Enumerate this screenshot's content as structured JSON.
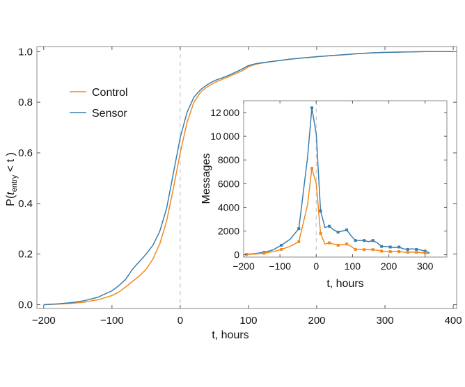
{
  "colors": {
    "control": "#f28a1f",
    "sensor": "#3a7fb0",
    "guide": "#c8c8c8",
    "frame": "#888888"
  },
  "chart_data": [
    {
      "type": "line",
      "xlabel": "t, hours",
      "ylabel_prefix": "P(",
      "ylabel_var": "t",
      "ylabel_sub": "entry",
      "ylabel_suffix": " < t )",
      "xlim": [
        -210,
        405
      ],
      "ylim": [
        -0.015,
        1.02
      ],
      "xticks": [
        -200,
        -100,
        0,
        100,
        200,
        300,
        400
      ],
      "xtick_labels": [
        "−200",
        "−100",
        "0",
        "100",
        "200",
        "300",
        "400"
      ],
      "yticks": [
        0.0,
        0.2,
        0.4,
        0.6,
        0.8,
        1.0
      ],
      "ytick_labels": [
        "0.0",
        "0.2",
        "0.4",
        "0.6",
        "0.8",
        "1.0"
      ],
      "vline_x": 0,
      "legend": "upper-left",
      "series": [
        {
          "name": "Control",
          "color_key": "control",
          "x": [
            -200,
            -180,
            -160,
            -140,
            -120,
            -100,
            -90,
            -80,
            -70,
            -60,
            -50,
            -40,
            -30,
            -20,
            -10,
            0,
            10,
            20,
            30,
            40,
            50,
            70,
            90,
            100,
            110,
            120,
            140,
            160,
            180,
            200,
            220,
            240,
            260,
            280,
            300,
            320,
            340,
            360,
            380,
            400
          ],
          "y": [
            0.0,
            0.002,
            0.005,
            0.01,
            0.02,
            0.036,
            0.05,
            0.07,
            0.092,
            0.113,
            0.14,
            0.18,
            0.24,
            0.33,
            0.46,
            0.6,
            0.72,
            0.8,
            0.84,
            0.862,
            0.877,
            0.9,
            0.923,
            0.94,
            0.95,
            0.955,
            0.963,
            0.97,
            0.975,
            0.98,
            0.984,
            0.988,
            0.992,
            0.995,
            0.997,
            0.998,
            0.999,
            1.0,
            1.0,
            1.0
          ]
        },
        {
          "name": "Sensor",
          "color_key": "sensor",
          "x": [
            -200,
            -180,
            -160,
            -140,
            -120,
            -100,
            -90,
            -80,
            -70,
            -60,
            -50,
            -40,
            -30,
            -20,
            -10,
            0,
            10,
            20,
            30,
            40,
            50,
            70,
            90,
            100,
            110,
            120,
            140,
            160,
            180,
            200,
            220,
            240,
            260,
            280,
            300,
            320,
            340,
            360,
            380,
            400
          ],
          "y": [
            0.0,
            0.003,
            0.008,
            0.016,
            0.03,
            0.055,
            0.075,
            0.1,
            0.14,
            0.17,
            0.2,
            0.235,
            0.29,
            0.38,
            0.52,
            0.66,
            0.76,
            0.82,
            0.85,
            0.87,
            0.885,
            0.905,
            0.93,
            0.945,
            0.952,
            0.956,
            0.963,
            0.97,
            0.975,
            0.98,
            0.984,
            0.988,
            0.992,
            0.995,
            0.997,
            0.998,
            0.999,
            1.0,
            1.0,
            1.0
          ]
        }
      ]
    },
    {
      "type": "line",
      "xlabel": "t, hours",
      "ylabel": "Messages",
      "xlim": [
        -200,
        360
      ],
      "ylim": [
        -200,
        13000
      ],
      "xticks": [
        -200,
        -100,
        0,
        100,
        200,
        300
      ],
      "xtick_labels": [
        "−200",
        "−100",
        "0",
        "100",
        "200",
        "300"
      ],
      "yticks": [
        0,
        2000,
        4000,
        6000,
        8000,
        10000,
        12000
      ],
      "ytick_labels": [
        "0",
        "2000",
        "4000",
        "6000",
        "8000",
        "10 000",
        "12 000"
      ],
      "vline_x": 0,
      "series": [
        {
          "name": "Sensor",
          "color_key": "sensor",
          "x": [
            -192,
            -168,
            -144,
            -120,
            -96,
            -72,
            -48,
            -24,
            -12,
            0,
            12,
            24,
            36,
            48,
            60,
            72,
            84,
            96,
            108,
            120,
            132,
            144,
            156,
            168,
            180,
            192,
            204,
            216,
            228,
            240,
            252,
            264,
            276,
            288,
            300,
            312
          ],
          "y": [
            30,
            100,
            200,
            400,
            800,
            1300,
            2200,
            8200,
            12400,
            10200,
            3700,
            2300,
            2400,
            2100,
            1900,
            2000,
            2100,
            1600,
            1200,
            1200,
            1200,
            1100,
            1200,
            1000,
            700,
            700,
            650,
            600,
            650,
            500,
            450,
            500,
            450,
            400,
            300,
            150
          ]
        },
        {
          "name": "Control",
          "color_key": "control",
          "x": [
            -192,
            -168,
            -144,
            -120,
            -96,
            -72,
            -48,
            -24,
            -12,
            0,
            12,
            24,
            36,
            48,
            60,
            72,
            84,
            96,
            108,
            120,
            132,
            144,
            156,
            168,
            180,
            192,
            204,
            216,
            228,
            240,
            252,
            264,
            276,
            288,
            300,
            312
          ],
          "y": [
            20,
            60,
            120,
            250,
            450,
            700,
            1100,
            4200,
            7300,
            6000,
            1800,
            900,
            1000,
            900,
            800,
            850,
            900,
            700,
            450,
            450,
            430,
            420,
            430,
            380,
            300,
            280,
            260,
            250,
            270,
            230,
            200,
            220,
            200,
            180,
            150,
            80
          ]
        }
      ]
    }
  ]
}
